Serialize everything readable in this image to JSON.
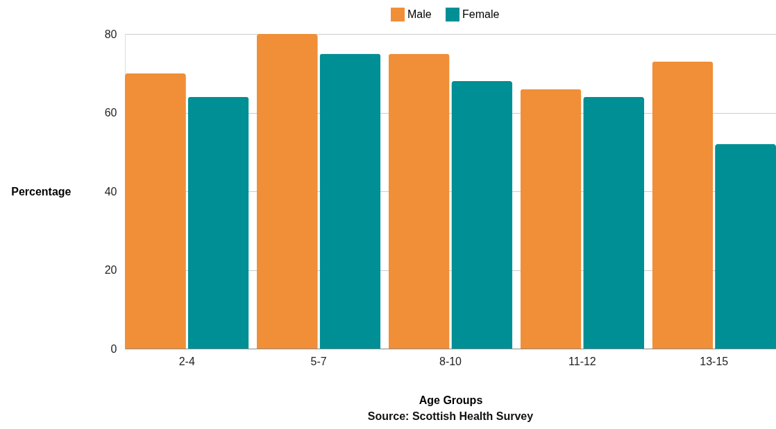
{
  "chart_data": {
    "type": "bar",
    "categories": [
      "2-4",
      "5-7",
      "8-10",
      "11-12",
      "13-15"
    ],
    "series": [
      {
        "name": "Male",
        "color": "#f08f38",
        "values": [
          70,
          80,
          75,
          66,
          73
        ]
      },
      {
        "name": "Female",
        "color": "#008f94",
        "values": [
          64,
          75,
          68,
          64,
          52
        ]
      }
    ],
    "xlabel": "Age Groups",
    "ylabel": "Percentage",
    "annotations": [
      "Source: Scottish Health Survey"
    ],
    "ylim": [
      0,
      80
    ],
    "yticks": [
      0,
      20,
      40,
      60,
      80
    ],
    "grid": "y",
    "legend": "top"
  }
}
